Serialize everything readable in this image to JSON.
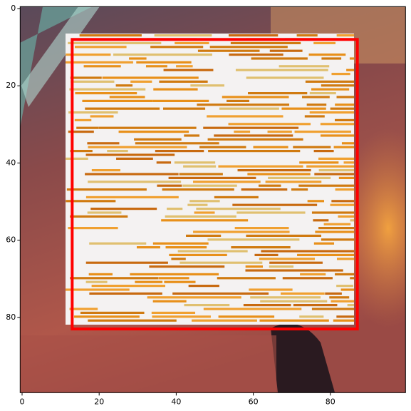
{
  "chart_data": {
    "type": "image",
    "xlim": [
      -0.5,
      99.5
    ],
    "ylim": [
      99.5,
      -0.5
    ],
    "xticks": [
      0,
      20,
      40,
      60,
      80
    ],
    "yticks": [
      0,
      20,
      40,
      60,
      80
    ],
    "rectangle": {
      "x": [
        13,
        87
      ],
      "y": [
        8,
        83
      ],
      "color": "#ff0000"
    }
  }
}
